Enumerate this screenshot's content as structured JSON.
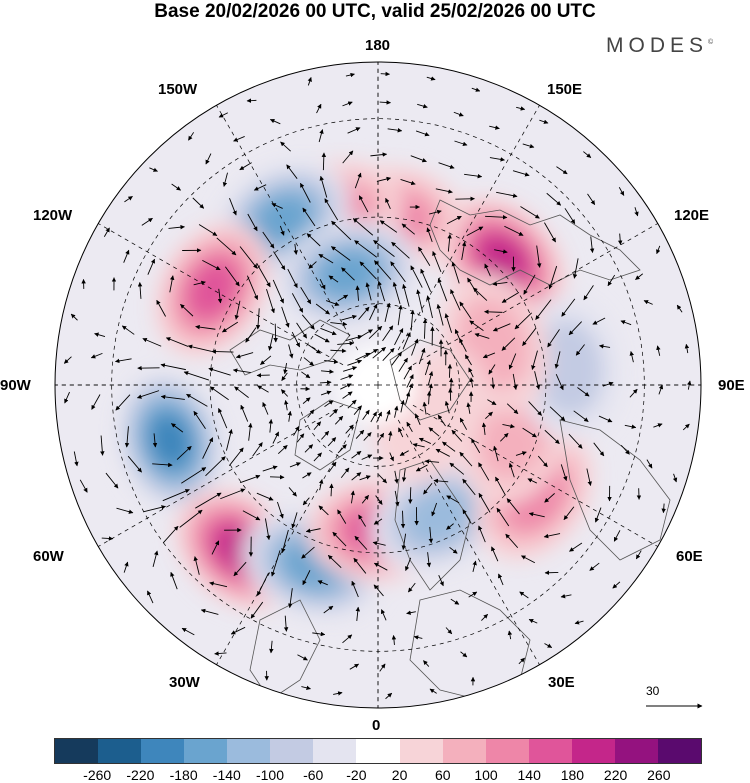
{
  "title": "Base 20/02/2026 00 UTC, valid 25/02/2026 00 UTC",
  "logo": "MODES",
  "logo_mark": "©",
  "longitudes": {
    "top": "180",
    "bottom": "0",
    "left": "90W",
    "right": "90E",
    "upper_left": "150W",
    "upper_right": "150E",
    "mid_upper_left": "120W",
    "mid_upper_right": "120E",
    "mid_lower_left": "60W",
    "mid_lower_right": "60E",
    "lower_left": "30W",
    "lower_right": "30E"
  },
  "reference_vector": "30",
  "colorbar": {
    "colors": [
      "#153a5c",
      "#1c5e8e",
      "#3e86bc",
      "#6aa4cf",
      "#9bbbdd",
      "#c3cbe3",
      "#e4e4f0",
      "#ffffff",
      "#f7d4d8",
      "#f4b0bd",
      "#ee86a8",
      "#e0559a",
      "#c4268a",
      "#94127f",
      "#5a0a6e"
    ],
    "ticks": [
      "-260",
      "-220",
      "-180",
      "-140",
      "-100",
      "-60",
      "-20",
      "20",
      "60",
      "100",
      "140",
      "180",
      "220",
      "260"
    ]
  },
  "anomalies": [
    {
      "lon": 135,
      "lat": 48,
      "value": 180
    },
    {
      "lon": 175,
      "lat": 50,
      "value": 100
    },
    {
      "lon": -165,
      "lat": 48,
      "value": 100
    },
    {
      "lon": -150,
      "lat": 45,
      "value": -140
    },
    {
      "lon": -165,
      "lat": 62,
      "value": -140
    },
    {
      "lon": -120,
      "lat": 45,
      "value": 140
    },
    {
      "lon": -75,
      "lat": 40,
      "value": -180
    },
    {
      "lon": -40,
      "lat": 40,
      "value": 180
    },
    {
      "lon": -20,
      "lat": 45,
      "value": -140
    },
    {
      "lon": 0,
      "lat": 55,
      "value": 140
    },
    {
      "lon": 25,
      "lat": 55,
      "value": -100
    },
    {
      "lon": 55,
      "lat": 45,
      "value": 100
    },
    {
      "lon": 70,
      "lat": 55,
      "value": 60
    },
    {
      "lon": 95,
      "lat": 45,
      "value": -60
    },
    {
      "lon": 110,
      "lat": 60,
      "value": 60
    },
    {
      "lon": 60,
      "lat": 75,
      "value": 40
    }
  ]
}
